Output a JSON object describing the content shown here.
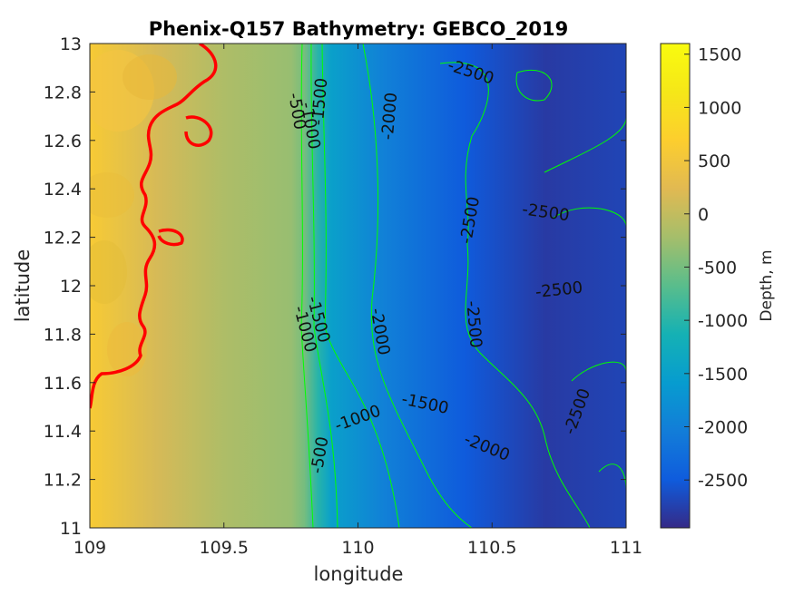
{
  "chart_data": {
    "type": "heatmap",
    "title": "Phenix-Q157 Bathymetry: GEBCO_2019",
    "xlabel": "longitude",
    "ylabel": "latitude",
    "xlim": [
      109,
      111
    ],
    "ylim": [
      11,
      13
    ],
    "xticks": [
      109,
      109.5,
      110,
      110.5,
      111
    ],
    "xtick_labels": [
      "109",
      "109.5",
      "110",
      "110.5",
      "111"
    ],
    "yticks": [
      11,
      11.2,
      11.4,
      11.6,
      11.8,
      12,
      12.2,
      12.4,
      12.6,
      12.8,
      13
    ],
    "ytick_labels": [
      "11",
      "11.2",
      "11.4",
      "11.6",
      "11.8",
      "12",
      "12.2",
      "12.4",
      "12.6",
      "12.8",
      "13"
    ],
    "colorbar": {
      "label": "Depth, m",
      "range": [
        -2950,
        1600
      ],
      "ticks": [
        1500,
        1000,
        500,
        0,
        -500,
        -1000,
        -1500,
        -2000,
        -2500
      ],
      "tick_labels": [
        "1500",
        "1000",
        "500",
        "0",
        "-500",
        "-1000",
        "-1500",
        "-2000",
        "-2500"
      ],
      "colormap": "parula"
    },
    "contour_levels": [
      -500,
      -1000,
      -1500,
      -2000,
      -2500
    ],
    "contour_color": "#00ff00",
    "coastline_color": "#ff0000",
    "depth_profile": [
      {
        "lon": 109.0,
        "depth": 600
      },
      {
        "lon": 109.25,
        "depth": 150
      },
      {
        "lon": 109.5,
        "depth": -150
      },
      {
        "lon": 109.75,
        "depth": -300
      },
      {
        "lon": 109.8,
        "depth": -500
      },
      {
        "lon": 109.85,
        "depth": -1000
      },
      {
        "lon": 109.9,
        "depth": -1500
      },
      {
        "lon": 110.1,
        "depth": -2000
      },
      {
        "lon": 110.4,
        "depth": -2500
      },
      {
        "lon": 110.7,
        "depth": -2800
      },
      {
        "lon": 111.0,
        "depth": -2700
      }
    ],
    "contour_labels": [
      {
        "text": "-500",
        "lon": 109.77,
        "lat": 12.72,
        "angle": 80
      },
      {
        "text": "-1000",
        "lon": 109.82,
        "lat": 12.66,
        "angle": 80
      },
      {
        "text": "-1500",
        "lon": 109.86,
        "lat": 12.76,
        "angle": -85
      },
      {
        "text": "-2000",
        "lon": 110.12,
        "lat": 12.7,
        "angle": -85
      },
      {
        "text": "-2500",
        "lon": 110.42,
        "lat": 12.88,
        "angle": 18
      },
      {
        "text": "-2500",
        "lon": 110.42,
        "lat": 12.27,
        "angle": -80
      },
      {
        "text": "-2500",
        "lon": 110.7,
        "lat": 12.3,
        "angle": 8
      },
      {
        "text": "-2500",
        "lon": 110.75,
        "lat": 11.98,
        "angle": -6
      },
      {
        "text": "-2500",
        "lon": 110.43,
        "lat": 11.84,
        "angle": 85
      },
      {
        "text": "-2500",
        "lon": 110.82,
        "lat": 11.48,
        "angle": -70
      },
      {
        "text": "-1500",
        "lon": 109.85,
        "lat": 11.86,
        "angle": 75
      },
      {
        "text": "-1000",
        "lon": 109.8,
        "lat": 11.82,
        "angle": 75
      },
      {
        "text": "-2000",
        "lon": 110.08,
        "lat": 11.81,
        "angle": 80
      },
      {
        "text": "-1000",
        "lon": 110.0,
        "lat": 11.45,
        "angle": -20
      },
      {
        "text": "-1500",
        "lon": 110.25,
        "lat": 11.51,
        "angle": 12
      },
      {
        "text": "-2000",
        "lon": 110.48,
        "lat": 11.33,
        "angle": 22
      },
      {
        "text": "-500",
        "lon": 109.86,
        "lat": 11.3,
        "angle": -80
      }
    ]
  }
}
